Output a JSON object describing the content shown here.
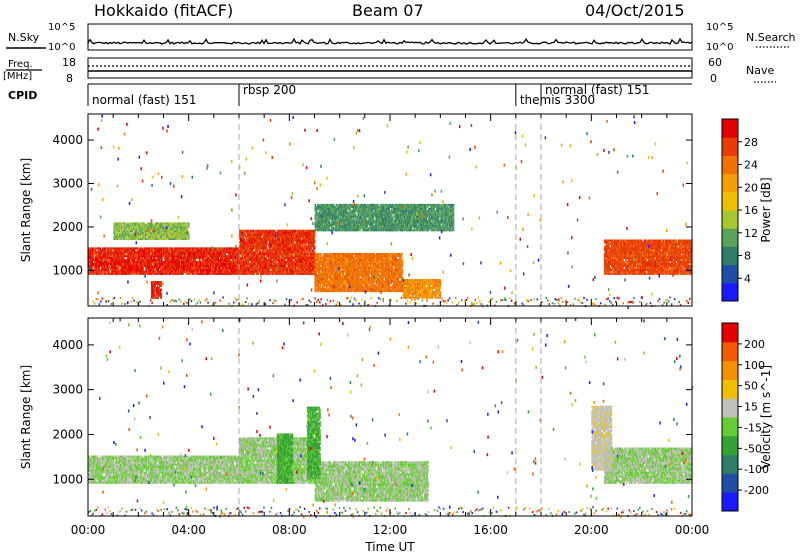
{
  "header": {
    "station": "Hokkaido (fitACF)",
    "beam": "Beam 07",
    "date": "04/Oct/2015"
  },
  "top_panels": {
    "nsky_label": "N.Sky",
    "nsky_ticks": [
      "10^5",
      "10^0"
    ],
    "nsearch_label": "N.Search",
    "freq_label": "Freq.",
    "freq_unit": "[MHz]",
    "freq_ticks": [
      "18",
      "8"
    ],
    "nave_ticks": [
      "60",
      "0"
    ],
    "nave_label": "Nave",
    "cpid_label": "CPID",
    "cpid_segments": [
      {
        "label": "normal (fast) 151",
        "start_h": 0,
        "end_h": 6.0
      },
      {
        "label": "rbsp 200",
        "start_h": 6.0,
        "end_h": 17.0
      },
      {
        "label": "themis 3300",
        "start_h": 17.0,
        "end_h": 18.0
      },
      {
        "label": "normal (fast) 151",
        "start_h": 18.0,
        "end_h": 24.0
      }
    ]
  },
  "chart_data": [
    {
      "type": "heatmap",
      "name": "power-panel",
      "ylabel": "Slant Range [km]",
      "xlabel": "Time UT",
      "ylim": [
        180,
        4600
      ],
      "xlim": [
        0,
        24
      ],
      "yticks": [
        "1000",
        "2000",
        "3000",
        "4000"
      ],
      "xtick_labels": [
        "00:00",
        "04:00",
        "08:00",
        "12:00",
        "16:00",
        "20:00",
        "00:00"
      ],
      "colorbar": {
        "label": "Power [dB]",
        "range": [
          0,
          32
        ],
        "tick_labels": [
          "4",
          "8",
          "12",
          "16",
          "20",
          "24",
          "28"
        ],
        "colors": [
          "#1a1aff",
          "#1f4ea8",
          "#2e7d6b",
          "#5aa35a",
          "#a8c832",
          "#f0c000",
          "#f5a000",
          "#f07000",
          "#e83c00",
          "#e60000"
        ]
      },
      "regions": [
        {
          "t0": 0.0,
          "t1": 6.0,
          "r0": 900,
          "r1": 1500,
          "level": 29
        },
        {
          "t0": 6.0,
          "t1": 9.0,
          "r0": 900,
          "r1": 1900,
          "level": 28
        },
        {
          "t0": 9.0,
          "t1": 12.5,
          "r0": 500,
          "r1": 1400,
          "level": 24
        },
        {
          "t0": 12.5,
          "t1": 14.0,
          "r0": 350,
          "r1": 800,
          "level": 22
        },
        {
          "t0": 20.5,
          "t1": 24.0,
          "r0": 900,
          "r1": 1700,
          "level": 27
        },
        {
          "t0": 1.0,
          "t1": 4.0,
          "r0": 1700,
          "r1": 2100,
          "level": 13
        },
        {
          "t0": 9.0,
          "t1": 14.5,
          "r0": 1900,
          "r1": 2500,
          "level": 10
        },
        {
          "t0": 2.5,
          "t1": 2.9,
          "r0": 350,
          "r1": 750,
          "level": 29
        }
      ]
    },
    {
      "type": "heatmap",
      "name": "velocity-panel",
      "ylabel": "Slant Range [km]",
      "xlabel": "Time UT",
      "ylim": [
        180,
        4600
      ],
      "xlim": [
        0,
        24
      ],
      "yticks": [
        "1000",
        "2000",
        "3000",
        "4000"
      ],
      "xtick_labels": [
        "00:00",
        "04:00",
        "08:00",
        "12:00",
        "16:00",
        "20:00",
        "00:00"
      ],
      "colorbar": {
        "label": "Velocity [m s^-1]",
        "range": [
          -250,
          250
        ],
        "tick_labels": [
          "200",
          "100",
          "50",
          "15",
          "-15",
          "-50",
          "-100",
          "-200"
        ],
        "colors": [
          "#1a1aff",
          "#1f4ea8",
          "#2e7d6b",
          "#33a333",
          "#66cc33",
          "#c0c0b8",
          "#f0c000",
          "#f59000",
          "#f05a00",
          "#e60000"
        ]
      },
      "regions": [
        {
          "t0": 0.0,
          "t1": 6.0,
          "r0": 900,
          "r1": 1500,
          "level": 0
        },
        {
          "t0": 6.0,
          "t1": 9.0,
          "r0": 900,
          "r1": 1900,
          "level": 0
        },
        {
          "t0": 9.0,
          "t1": 13.5,
          "r0": 500,
          "r1": 1400,
          "level": 0
        },
        {
          "t0": 20.5,
          "t1": 24.0,
          "r0": 900,
          "r1": 1700,
          "level": 0
        },
        {
          "t0": 7.5,
          "t1": 8.1,
          "r0": 900,
          "r1": 2000,
          "level": -60
        },
        {
          "t0": 8.7,
          "t1": 9.2,
          "r0": 1000,
          "r1": 2600,
          "level": -60
        },
        {
          "t0": 20.0,
          "t1": 20.8,
          "r0": 1200,
          "r1": 2600,
          "level": 30
        }
      ]
    }
  ]
}
